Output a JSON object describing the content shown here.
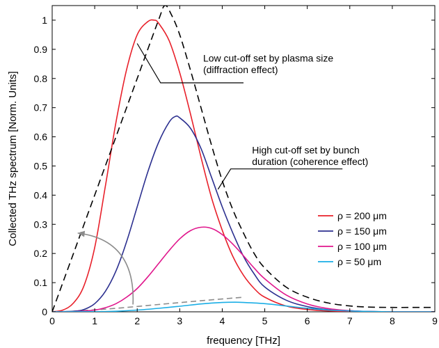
{
  "chart_data": {
    "type": "line",
    "xlabel": "frequency [THz]",
    "ylabel": "Collected THz spectrum [Norm. Units]",
    "xlim": [
      0,
      9
    ],
    "ylim": [
      0,
      1.05
    ],
    "x_ticks": [
      0,
      1,
      2,
      3,
      4,
      5,
      6,
      7,
      8,
      9
    ],
    "y_ticks": [
      0,
      0.1,
      0.2,
      0.3,
      0.4,
      0.5,
      0.6,
      0.7,
      0.8,
      0.9,
      1
    ],
    "y_tick_labels": [
      "0",
      "0.1",
      "0.2",
      "0.3",
      "0.4",
      "0.5",
      "0.6",
      "0.7",
      "0.8",
      "0.9",
      "1"
    ],
    "grid": false,
    "legend_position": "right",
    "colors": {
      "envelope": "#000000",
      "rho_200": "#e8202a",
      "rho_150": "#2b2f8f",
      "rho_100": "#e0168c",
      "rho_50": "#1aaee6",
      "gray": "#8c8c8c"
    },
    "series": [
      {
        "name": "ρ = 200 μm",
        "color": "#e8202a",
        "x": [
          0,
          0.25,
          0.5,
          0.75,
          1,
          1.25,
          1.5,
          1.75,
          2,
          2.25,
          2.4,
          2.5,
          2.75,
          3,
          3.25,
          3.5,
          3.75,
          4,
          4.25,
          4.5,
          4.75,
          5,
          5.5,
          6,
          6.5,
          7,
          7.5,
          8,
          8.5,
          9
        ],
        "y": [
          0,
          0.006,
          0.03,
          0.09,
          0.22,
          0.43,
          0.65,
          0.83,
          0.95,
          0.995,
          1.0,
          0.99,
          0.93,
          0.82,
          0.68,
          0.53,
          0.39,
          0.28,
          0.19,
          0.125,
          0.08,
          0.05,
          0.02,
          0.008,
          0.003,
          0.001,
          0,
          0,
          0,
          0
        ]
      },
      {
        "name": "ρ = 150 μm",
        "color": "#2b2f8f",
        "x": [
          0,
          0.5,
          0.75,
          1,
          1.25,
          1.5,
          1.75,
          2,
          2.25,
          2.5,
          2.75,
          2.9,
          3,
          3.25,
          3.5,
          3.75,
          4,
          4.25,
          4.5,
          4.75,
          5,
          5.5,
          6,
          6.5,
          7,
          7.5,
          8,
          9
        ],
        "y": [
          0,
          0.002,
          0.008,
          0.028,
          0.07,
          0.14,
          0.24,
          0.36,
          0.48,
          0.58,
          0.65,
          0.67,
          0.665,
          0.63,
          0.56,
          0.46,
          0.36,
          0.27,
          0.19,
          0.13,
          0.085,
          0.04,
          0.018,
          0.007,
          0.003,
          0.001,
          0,
          0
        ]
      },
      {
        "name": "ρ = 100 μm",
        "color": "#e0168c",
        "x": [
          0,
          0.5,
          1,
          1.25,
          1.5,
          1.75,
          2,
          2.25,
          2.5,
          2.75,
          3,
          3.25,
          3.5,
          3.75,
          4,
          4.25,
          4.5,
          4.75,
          5,
          5.5,
          6,
          6.5,
          7,
          7.5,
          8,
          9
        ],
        "y": [
          0,
          0.0005,
          0.006,
          0.014,
          0.028,
          0.05,
          0.08,
          0.12,
          0.165,
          0.21,
          0.25,
          0.278,
          0.29,
          0.286,
          0.265,
          0.232,
          0.192,
          0.15,
          0.113,
          0.058,
          0.027,
          0.011,
          0.004,
          0.001,
          0,
          0
        ]
      },
      {
        "name": "ρ = 50 μm",
        "color": "#1aaee6",
        "x": [
          0,
          1,
          1.5,
          2,
          2.5,
          3,
          3.5,
          4,
          4.3,
          4.5,
          5,
          5.5,
          6,
          6.5,
          7,
          7.5,
          8,
          9
        ],
        "y": [
          0,
          0.0005,
          0.002,
          0.006,
          0.012,
          0.019,
          0.027,
          0.032,
          0.033,
          0.032,
          0.028,
          0.02,
          0.012,
          0.006,
          0.003,
          0.001,
          0,
          0
        ]
      }
    ],
    "envelope": {
      "style": "dashed",
      "color": "#000000",
      "x": [
        0,
        0.5,
        1,
        1.5,
        2,
        2.5,
        2.65,
        2.8,
        3,
        3.25,
        3.5,
        3.75,
        4,
        4.25,
        4.5,
        4.75,
        5,
        5.5,
        6,
        6.5,
        7,
        7.5,
        8,
        8.5,
        9
      ],
      "y": [
        0,
        0.2,
        0.4,
        0.6,
        0.8,
        1.0,
        1.05,
        1.02,
        0.95,
        0.83,
        0.7,
        0.57,
        0.45,
        0.35,
        0.27,
        0.2,
        0.15,
        0.085,
        0.05,
        0.03,
        0.02,
        0.016,
        0.015,
        0.015,
        0.015
      ]
    },
    "gray_dashed": {
      "style": "dashed",
      "color": "#8c8c8c",
      "x": [
        0.5,
        1.5,
        2.5,
        3.5,
        4.5
      ],
      "y": [
        0.002,
        0.012,
        0.025,
        0.038,
        0.05
      ]
    },
    "gray_arrow": {
      "color": "#8c8c8c",
      "from": [
        1.9,
        0.025
      ],
      "to": [
        0.6,
        0.27
      ]
    },
    "annotations": [
      {
        "id": "low-cutoff",
        "lines": [
          "Low cut-off set by plasma size",
          "(diffraction effect)"
        ],
        "text_x": 3.55,
        "text_y": [
          0.87,
          0.83
        ],
        "leader": [
          [
            2.0,
            0.92
          ],
          [
            2.55,
            0.785
          ],
          [
            4.5,
            0.785
          ]
        ]
      },
      {
        "id": "high-cutoff",
        "lines": [
          "High cut-off set by bunch",
          "duration (coherence effect)"
        ],
        "text_x": 4.7,
        "text_y": [
          0.555,
          0.515
        ],
        "leader": [
          [
            4.2,
            0.49
          ],
          [
            3.95,
            0.49
          ],
          [
            4.2,
            0.49
          ],
          [
            3.9,
            0.48
          ],
          [
            4.2,
            0.49
          ],
          [
            4.2,
            0.49
          ],
          [
            3.93,
            0.49
          ],
          [
            3.72,
            0.5
          ],
          [
            4.2,
            0.49
          ]
        ]
      }
    ],
    "legend": {
      "entries": [
        "ρ = 200 μm",
        "ρ = 150 μm",
        "ρ = 100 μm",
        "ρ = 50 μm"
      ]
    }
  }
}
